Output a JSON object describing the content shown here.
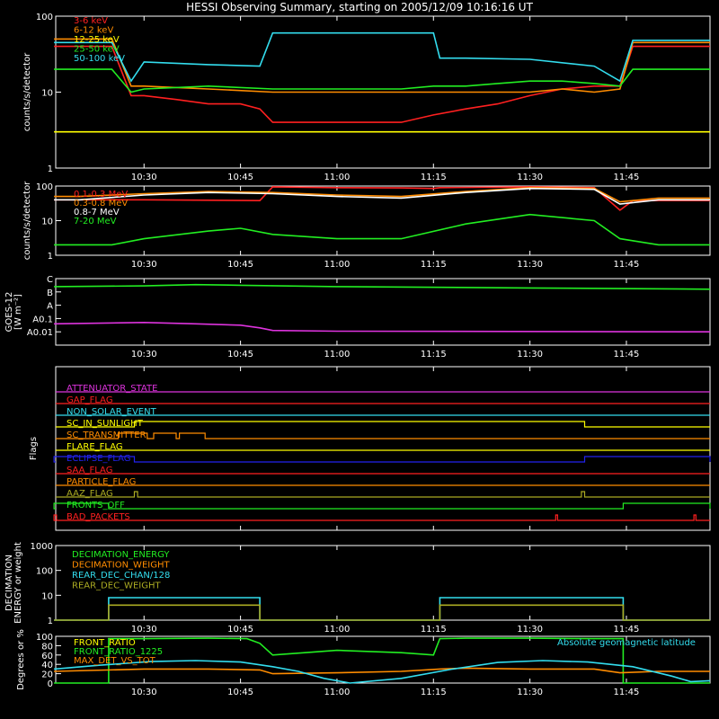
{
  "title": "HESSI Observing Summary, starting on 2005/12/09 10:16:16 UT",
  "time_labels": [
    "10:30",
    "10:45",
    "11:00",
    "11:15",
    "11:30",
    "11:45"
  ],
  "time_ticks_min": [
    30,
    45,
    60,
    75,
    90,
    105
  ],
  "time_range_min": [
    16.27,
    118
  ],
  "colors": {
    "yellow": "#ffff00",
    "orange": "#ff8c00",
    "red": "#ff2020",
    "green": "#22ee22",
    "cyan": "#33ddee",
    "magenta": "#dd33dd",
    "blue": "#2222ee",
    "olive": "#aaaa22",
    "white": "#ffffff"
  },
  "chart_data": [
    {
      "type": "line",
      "name": "counts",
      "ylabel": "counts/s/detector",
      "yscale": "log",
      "ylim": [
        1,
        100
      ],
      "yticks": [
        1,
        10,
        100
      ],
      "ytick_labels": [
        "1",
        "10",
        "100"
      ],
      "legend": [
        "3-6 keV",
        "6-12 keV",
        "12-25 keV",
        "25-50 keV",
        "50-100 keV"
      ],
      "legend_colors": [
        "#ff2020",
        "#ff8c00",
        "#ffff00",
        "#22ee22",
        "#33ddee"
      ],
      "series": [
        {
          "name": "3-6 keV",
          "color": "#ff2020",
          "x": [
            16,
            25,
            28,
            30,
            35,
            40,
            45,
            48,
            50,
            55,
            60,
            65,
            70,
            75,
            80,
            85,
            90,
            95,
            100,
            104,
            106,
            118
          ],
          "y": [
            40,
            40,
            9,
            9,
            8,
            7,
            7,
            6,
            4,
            4,
            4,
            4,
            4,
            5,
            6,
            7,
            9,
            11,
            12,
            12,
            40,
            40
          ]
        },
        {
          "name": "6-12 keV",
          "color": "#ff8c00",
          "x": [
            16,
            25,
            28,
            30,
            40,
            50,
            60,
            70,
            75,
            80,
            85,
            90,
            95,
            100,
            104,
            106,
            118
          ],
          "y": [
            50,
            50,
            12,
            12,
            11,
            10,
            10,
            10,
            10,
            10,
            10,
            10,
            11,
            10,
            11,
            45,
            45
          ]
        },
        {
          "name": "12-25 keV",
          "color": "#ffff00",
          "x": [
            16,
            25,
            28,
            30,
            40,
            50,
            60,
            70,
            75,
            80,
            85,
            90,
            95,
            100,
            104,
            106,
            118
          ],
          "y": [
            3,
            3,
            3,
            3,
            3,
            3,
            3,
            3,
            3,
            3,
            3,
            3,
            3,
            3,
            3,
            3,
            3
          ]
        },
        {
          "name": "25-50 keV",
          "color": "#22ee22",
          "x": [
            16,
            25,
            28,
            30,
            40,
            50,
            60,
            70,
            75,
            80,
            85,
            90,
            95,
            100,
            104,
            106,
            118
          ],
          "y": [
            20,
            20,
            10,
            11,
            12,
            11,
            11,
            11,
            12,
            12,
            13,
            14,
            14,
            13,
            12,
            20,
            20
          ]
        },
        {
          "name": "50-100 keV",
          "color": "#33ddee",
          "x": [
            16,
            25,
            28,
            30,
            40,
            48,
            50,
            60,
            70,
            75,
            76,
            80,
            90,
            100,
            104,
            106,
            118
          ],
          "y": [
            45,
            45,
            14,
            25,
            23,
            22,
            60,
            60,
            60,
            60,
            28,
            28,
            27,
            22,
            14,
            48,
            48
          ]
        }
      ]
    },
    {
      "type": "line",
      "name": "particles",
      "ylabel": "counts/s/detector",
      "yscale": "log",
      "ylim": [
        1,
        100
      ],
      "yticks": [
        1,
        10,
        100
      ],
      "ytick_labels": [
        "1",
        "10",
        "100"
      ],
      "legend": [
        "0.1-0.3 MeV",
        "0.3-0.8 MeV",
        "0.8-7 MeV",
        "7-20 MeV"
      ],
      "legend_colors": [
        "#ff2020",
        "#ff8c00",
        "#ffffff",
        "#22ee22"
      ],
      "series": [
        {
          "name": "0.1-0.3 MeV",
          "color": "#ff2020",
          "x": [
            16,
            30,
            48,
            50,
            60,
            70,
            75,
            76,
            90,
            100,
            104,
            106,
            118
          ],
          "y": [
            40,
            40,
            38,
            95,
            90,
            88,
            85,
            90,
            95,
            90,
            20,
            38,
            38
          ]
        },
        {
          "name": "0.3-0.8 MeV",
          "color": "#ff8c00",
          "x": [
            16,
            20,
            30,
            40,
            50,
            60,
            70,
            80,
            90,
            100,
            104,
            110,
            118
          ],
          "y": [
            50,
            50,
            60,
            70,
            65,
            55,
            50,
            70,
            90,
            85,
            35,
            45,
            45
          ]
        },
        {
          "name": "0.8-7 MeV",
          "color": "#ffffff",
          "x": [
            16,
            20,
            30,
            40,
            50,
            60,
            70,
            80,
            90,
            100,
            104,
            110,
            118
          ],
          "y": [
            40,
            40,
            55,
            65,
            60,
            50,
            45,
            65,
            85,
            80,
            30,
            40,
            40
          ]
        },
        {
          "name": "7-20 MeV",
          "color": "#22ee22",
          "x": [
            16,
            25,
            30,
            40,
            45,
            50,
            60,
            70,
            80,
            90,
            100,
            104,
            110,
            118
          ],
          "y": [
            2,
            2,
            3,
            5,
            6,
            4,
            3,
            3,
            8,
            15,
            10,
            3,
            2,
            2
          ]
        }
      ]
    },
    {
      "type": "line",
      "name": "goes",
      "ylabel": "GOES-12",
      "ylabel2": "[W m⁻²]",
      "yticks": [
        "C",
        "B",
        "A",
        "A0.1",
        "A0.01"
      ],
      "series": [
        {
          "name": "long",
          "color": "#22ee22",
          "x": [
            16,
            30,
            38,
            45,
            60,
            90,
            118
          ],
          "y": [
            4.4,
            4.45,
            4.55,
            4.5,
            4.4,
            4.3,
            4.2
          ]
        },
        {
          "name": "short",
          "color": "#dd33dd",
          "x": [
            16,
            30,
            38,
            45,
            48,
            50,
            60,
            118
          ],
          "y": [
            1.6,
            1.7,
            1.6,
            1.5,
            1.3,
            1.1,
            1.05,
            1.0
          ]
        }
      ]
    },
    {
      "type": "line",
      "name": "flags",
      "ylabel": "Flags",
      "flags": [
        {
          "label": "ATTENUATOR_STATE",
          "color": "#dd33dd",
          "steps": []
        },
        {
          "label": "GAP_FLAG",
          "color": "#ff2020",
          "steps": []
        },
        {
          "label": "NON_SOLAR_EVENT",
          "color": "#33ddee",
          "steps": []
        },
        {
          "label": "SC_IN_SUNLIGHT",
          "color": "#ffff00",
          "steps": [
            [
              28.5,
              98.5
            ]
          ]
        },
        {
          "label": "SC_TRANSMITTER",
          "color": "#ff8c00",
          "steps": [
            [
              26,
              30.5
            ],
            [
              31.5,
              35
            ],
            [
              35.5,
              39.5
            ]
          ]
        },
        {
          "label": "FLARE_FLAG",
          "color": "#ffff00",
          "steps": []
        },
        {
          "label": "ECLIPSE_FLAG",
          "color": "#2222ee",
          "steps": [
            [
              16,
              28.5
            ],
            [
              98.5,
              118
            ]
          ]
        },
        {
          "label": "SAA_FLAG",
          "color": "#ff2020",
          "steps": []
        },
        {
          "label": "PARTICLE_FLAG",
          "color": "#ff8c00",
          "steps": []
        },
        {
          "label": "AAZ_FLAG",
          "color": "#aaaa22",
          "steps": [
            [
              28.5,
              29
            ],
            [
              98,
              98.5
            ]
          ]
        },
        {
          "label": "FRONTS_OFF",
          "color": "#22ee22",
          "steps": [
            [
              16,
              24.5
            ],
            [
              104.5,
              118
            ]
          ]
        },
        {
          "label": "BAD_PACKETS",
          "color": "#ff2020",
          "steps": [
            [
              16,
              16.4
            ],
            [
              94,
              94.3
            ],
            [
              115.5,
              115.8
            ]
          ]
        }
      ]
    },
    {
      "type": "line",
      "name": "decimation",
      "ylabel": "DECIMATION",
      "ylabel2": "ENERGY or weight",
      "yscale": "log",
      "ylim": [
        1,
        1000
      ],
      "yticks": [
        1,
        10,
        100,
        1000
      ],
      "ytick_labels": [
        "1",
        "10",
        "100",
        "1000"
      ],
      "legend": [
        "DECIMATION_ENERGY",
        "DECIMATION_WEIGHT",
        "REAR_DEC_CHAN/128",
        "REAR_DEC_WEIGHT"
      ],
      "legend_colors": [
        "#22ee22",
        "#ff8c00",
        "#33ddee",
        "#aaaa22"
      ],
      "series": [
        {
          "name": "REAR_DEC_CHAN/128",
          "color": "#33ddee",
          "x": [
            16,
            24.5,
            24.5,
            48,
            48,
            76,
            76,
            104.5,
            104.5,
            118
          ],
          "y": [
            1,
            1,
            8,
            8,
            1,
            1,
            8,
            8,
            1,
            1
          ]
        },
        {
          "name": "REAR_DEC_WEIGHT",
          "color": "#aaaa22",
          "x": [
            16,
            24.5,
            24.5,
            48,
            48,
            76,
            76,
            104.5,
            104.5,
            118
          ],
          "y": [
            1,
            1,
            4,
            4,
            1,
            1,
            4,
            4,
            1,
            1
          ]
        }
      ]
    },
    {
      "type": "line",
      "name": "ratios",
      "ylabel": "Degrees or %",
      "ylim": [
        0,
        100
      ],
      "yticks": [
        0,
        20,
        40,
        60,
        80,
        100
      ],
      "ytick_labels": [
        "0",
        "20",
        "40",
        "60",
        "80",
        "100"
      ],
      "legend": [
        "FRONT_RATIO",
        "FRONT_RATIO_1225",
        "MAX_DET_VS_TOT"
      ],
      "legend_colors": [
        "#ffff00",
        "#22ee22",
        "#ff8c00"
      ],
      "annotation": "Absolute geomagnetic latitude",
      "series": [
        {
          "name": "FRONT_RATIO_1225",
          "color": "#22ee22",
          "x": [
            16,
            24.5,
            24.5,
            30,
            40,
            46,
            48,
            50,
            55,
            60,
            70,
            75,
            76,
            80,
            90,
            100,
            104.5,
            104.5,
            118
          ],
          "y": [
            0,
            0,
            95,
            95,
            96,
            95,
            85,
            60,
            65,
            70,
            65,
            60,
            95,
            96,
            96,
            95,
            95,
            0,
            0
          ]
        },
        {
          "name": "MAX_DET_VS_TOT",
          "color": "#ff8c00",
          "x": [
            16,
            30,
            40,
            48,
            50,
            60,
            70,
            76,
            80,
            90,
            100,
            104,
            110,
            118
          ],
          "y": [
            25,
            30,
            30,
            28,
            20,
            22,
            25,
            30,
            32,
            30,
            30,
            22,
            25,
            25
          ]
        },
        {
          "name": "latitude",
          "color": "#33ddee",
          "x": [
            16,
            23,
            31,
            38,
            45,
            50,
            54,
            58,
            62,
            70,
            78,
            85,
            92,
            99,
            106,
            112,
            115,
            118
          ],
          "y": [
            30,
            38,
            46,
            48,
            45,
            35,
            25,
            10,
            0,
            10,
            30,
            44,
            48,
            45,
            35,
            15,
            3,
            5
          ]
        }
      ]
    }
  ]
}
